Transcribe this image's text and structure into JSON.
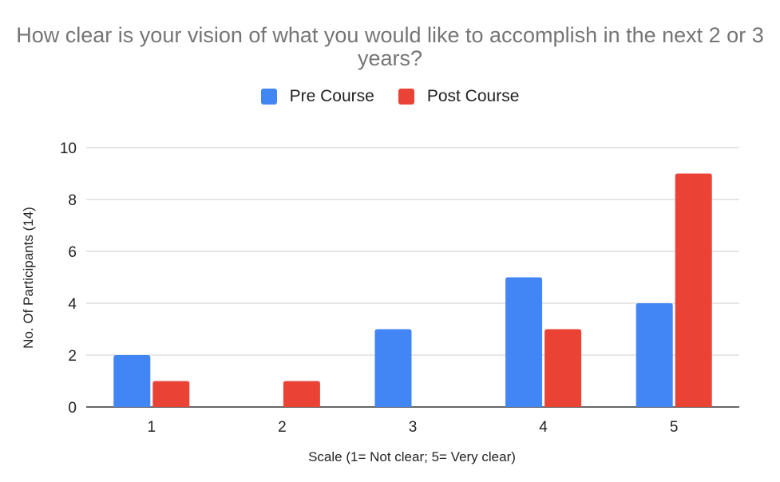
{
  "chart_data": {
    "type": "bar",
    "title": "How clear is your vision of what you would like to accomplish in the next 2 or 3 years?",
    "xlabel": "Scale (1= Not clear; 5= Very clear)",
    "ylabel": "No. Of Participants (14)",
    "categories": [
      "1",
      "2",
      "3",
      "4",
      "5"
    ],
    "series": [
      {
        "name": "Pre Course",
        "color": "#4285f4",
        "values": [
          2,
          0,
          3,
          5,
          4
        ]
      },
      {
        "name": "Post Course",
        "color": "#ea4335",
        "values": [
          1,
          1,
          0,
          3,
          9
        ]
      }
    ],
    "ylim": [
      0,
      10
    ],
    "yticks": [
      0,
      2,
      4,
      6,
      8,
      10
    ],
    "grid": true,
    "legend": "top-center"
  }
}
